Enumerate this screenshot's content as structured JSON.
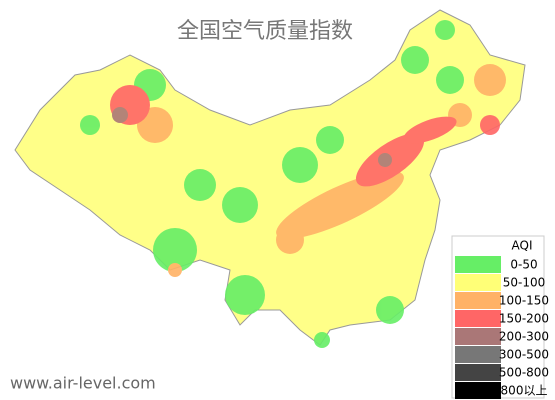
{
  "title": "全国空气质量指数",
  "legend": {
    "title": "AQI",
    "items": [
      {
        "label": "0-50",
        "color": "#66ee66"
      },
      {
        "label": "50-100",
        "color": "#ffff77"
      },
      {
        "label": "100-150",
        "color": "#ffb266"
      },
      {
        "label": "150-200",
        "color": "#ff6666"
      },
      {
        "label": "200-300",
        "color": "#aa7777"
      },
      {
        "label": "300-500",
        "color": "#777777"
      },
      {
        "label": "500-800",
        "color": "#444444"
      },
      {
        "label": "800以上",
        "color": "#000000"
      }
    ]
  },
  "footer": "www.air-level.com"
}
